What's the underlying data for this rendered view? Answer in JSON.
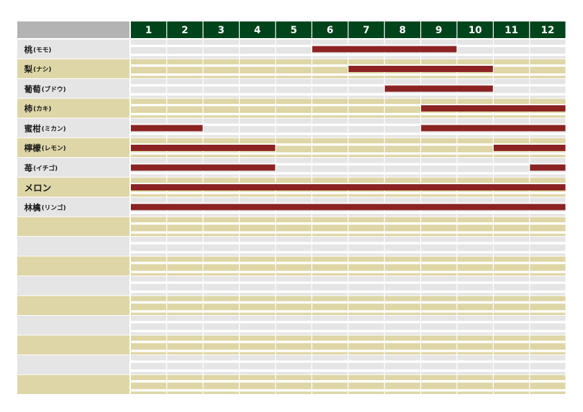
{
  "colors": {
    "header_bg": "#00441b",
    "header_text": "#ffffff",
    "corner_bg": "#b3b3b3",
    "row_band_gray": "#e5e5e5",
    "row_band_khaki": "#ded6a6",
    "stripe_light": "#ffffff",
    "bar": "#8b2323"
  },
  "chart_data": {
    "type": "bar",
    "orientation": "horizontal-gantt",
    "months": [
      "1",
      "2",
      "3",
      "4",
      "5",
      "6",
      "7",
      "8",
      "9",
      "10",
      "11",
      "12"
    ],
    "total_rows": 18,
    "series": [
      {
        "name": "桃",
        "reading": "(モモ)",
        "ranges": [
          [
            6,
            9
          ]
        ]
      },
      {
        "name": "梨",
        "reading": "(ナシ)",
        "ranges": [
          [
            7,
            10
          ]
        ]
      },
      {
        "name": "葡萄",
        "reading": "(ブドウ)",
        "ranges": [
          [
            8,
            10
          ]
        ]
      },
      {
        "name": "柿",
        "reading": "(カキ)",
        "ranges": [
          [
            9,
            12
          ]
        ]
      },
      {
        "name": "蜜柑",
        "reading": "(ミカン)",
        "ranges": [
          [
            1,
            2
          ],
          [
            9,
            12
          ]
        ]
      },
      {
        "name": "檸檬",
        "reading": "(レモン)",
        "ranges": [
          [
            1,
            4
          ],
          [
            11,
            12
          ]
        ]
      },
      {
        "name": "苺",
        "reading": "(イチゴ)",
        "ranges": [
          [
            1,
            4
          ],
          [
            12,
            12
          ]
        ]
      },
      {
        "name": "メロン",
        "reading": "",
        "ranges": [
          [
            1,
            12
          ]
        ]
      },
      {
        "name": "林檎",
        "reading": "(リンゴ)",
        "ranges": [
          [
            1,
            12
          ]
        ]
      }
    ]
  }
}
